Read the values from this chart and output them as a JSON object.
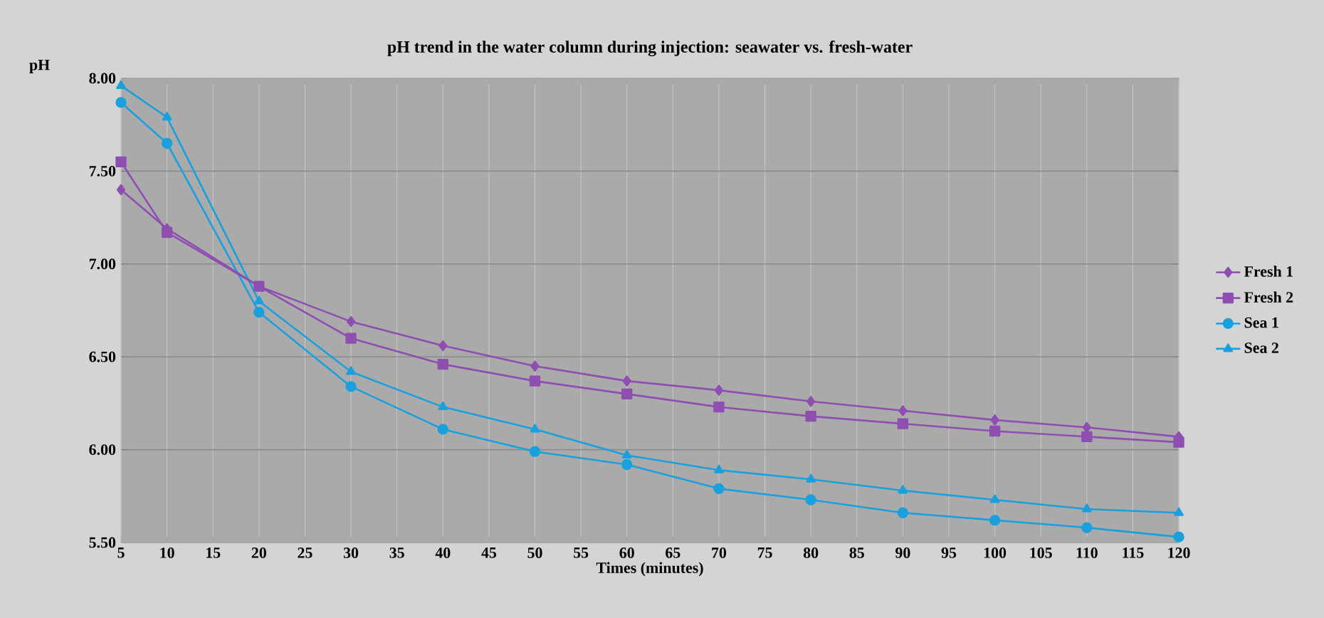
{
  "chart_data": {
    "type": "line",
    "title": "pH trend in the water column during injection:  seawater vs. fresh-water",
    "xlabel": "Times (minutes)",
    "ylabel": "pH",
    "x": [
      5,
      10,
      20,
      30,
      40,
      50,
      60,
      70,
      80,
      90,
      100,
      110,
      120
    ],
    "series": [
      {
        "name": "Fresh 1",
        "color": "#8e4fb0",
        "marker": "diamond",
        "values": [
          7.4,
          7.19,
          6.88,
          6.69,
          6.56,
          6.45,
          6.37,
          6.32,
          6.26,
          6.21,
          6.16,
          6.12,
          6.07
        ]
      },
      {
        "name": "Fresh 2",
        "color": "#8e4fb0",
        "marker": "square",
        "values": [
          7.55,
          7.17,
          6.88,
          6.6,
          6.46,
          6.37,
          6.3,
          6.23,
          6.18,
          6.14,
          6.1,
          6.07,
          6.04
        ]
      },
      {
        "name": "Sea 1",
        "color": "#1aa0dc",
        "marker": "circle",
        "values": [
          7.87,
          7.65,
          6.74,
          6.34,
          6.11,
          5.99,
          5.92,
          5.79,
          5.73,
          5.66,
          5.62,
          5.58,
          5.53
        ]
      },
      {
        "name": "Sea 2",
        "color": "#1aa0dc",
        "marker": "triangle",
        "values": [
          7.96,
          7.79,
          6.8,
          6.42,
          6.23,
          6.11,
          5.97,
          5.89,
          5.84,
          5.78,
          5.73,
          5.68,
          5.66
        ]
      }
    ],
    "xlim": [
      5,
      120
    ],
    "xticks": [
      5,
      10,
      15,
      20,
      25,
      30,
      35,
      40,
      45,
      50,
      55,
      60,
      65,
      70,
      75,
      80,
      85,
      90,
      95,
      100,
      105,
      110,
      115,
      120
    ],
    "ylim": [
      5.5,
      8.0
    ],
    "yticks": [
      {
        "value": 5.5,
        "label": "5.50"
      },
      {
        "value": 6.0,
        "label": "6.00"
      },
      {
        "value": 6.5,
        "label": "6.50"
      },
      {
        "value": 7.0,
        "label": "7.00"
      },
      {
        "value": 7.5,
        "label": "7.50"
      },
      {
        "value": 8.0,
        "label": "8.00"
      }
    ],
    "grid": true,
    "legend": "right",
    "line_style": "solid"
  }
}
